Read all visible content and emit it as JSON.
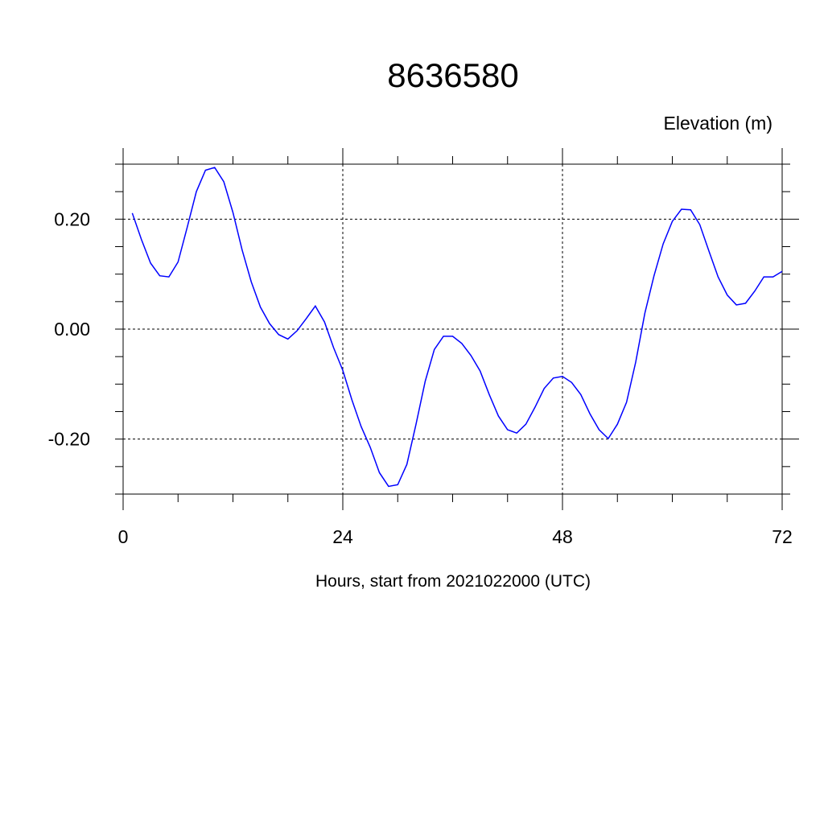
{
  "chart_data": {
    "type": "line",
    "title": "8636580",
    "y_label": "Elevation (m)",
    "x_label": "Hours, start from 2021022000 (UTC)",
    "x": [
      1,
      2,
      3,
      4,
      5,
      6,
      7,
      8,
      9,
      10,
      11,
      12,
      13,
      14,
      15,
      16,
      17,
      18,
      19,
      20,
      21,
      22,
      23,
      24,
      25,
      26,
      27,
      28,
      29,
      30,
      31,
      32,
      33,
      34,
      35,
      36,
      37,
      38,
      39,
      40,
      41,
      42,
      43,
      44,
      45,
      46,
      47,
      48,
      49,
      50,
      51,
      52,
      53,
      54,
      55,
      56,
      57,
      58,
      59,
      60,
      61,
      62,
      63,
      64,
      65,
      66,
      67,
      68,
      69,
      70,
      71,
      72
    ],
    "series": [
      {
        "color": "#0000ff",
        "values": [
          0.211,
          0.163,
          0.12,
          0.097,
          0.095,
          0.122,
          0.185,
          0.25,
          0.289,
          0.294,
          0.268,
          0.212,
          0.144,
          0.086,
          0.04,
          0.01,
          -0.01,
          -0.018,
          -0.003,
          0.019,
          0.042,
          0.013,
          -0.034,
          -0.075,
          -0.129,
          -0.177,
          -0.215,
          -0.261,
          -0.286,
          -0.283,
          -0.246,
          -0.173,
          -0.095,
          -0.037,
          -0.013,
          -0.013,
          -0.026,
          -0.048,
          -0.076,
          -0.119,
          -0.158,
          -0.183,
          -0.189,
          -0.173,
          -0.142,
          -0.108,
          -0.089,
          -0.086,
          -0.097,
          -0.119,
          -0.154,
          -0.183,
          -0.199,
          -0.173,
          -0.133,
          -0.06,
          0.029,
          0.097,
          0.155,
          0.196,
          0.218,
          0.217,
          0.19,
          0.142,
          0.095,
          0.062,
          0.044,
          0.047,
          0.069,
          0.095,
          0.095,
          0.105
        ]
      }
    ],
    "xlim": [
      0,
      72
    ],
    "xticks": [
      0,
      24,
      48,
      72
    ],
    "xminorticks": [
      6,
      12,
      18,
      30,
      36,
      42,
      54,
      60,
      66
    ],
    "ylim": [
      -0.3,
      0.3
    ],
    "yticks": [
      {
        "value": -0.2,
        "label": "-0.20"
      },
      {
        "value": 0,
        "label": "0.00"
      },
      {
        "value": 0.2,
        "label": "0.20"
      }
    ],
    "yminorticks": [
      -0.3,
      -0.25,
      -0.15,
      -0.1,
      -0.05,
      0.05,
      0.1,
      0.15,
      0.25,
      0.3
    ],
    "grid": true
  }
}
